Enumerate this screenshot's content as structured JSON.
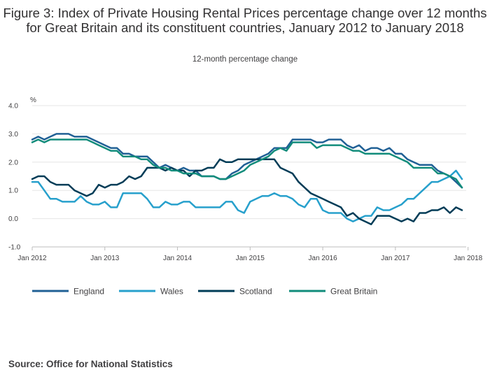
{
  "title": "Figure 3: Index of Private Housing Rental Prices percentage change over 12 months for Great Britain and its constituent countries, January 2012 to January 2018",
  "subtitle": "12-month percentage change",
  "source": "Source: Office for National Statistics",
  "chart_data": {
    "type": "line",
    "title": "Figure 3: Index of Private Housing Rental Prices percentage change over 12 months for Great Britain and its constituent countries, January 2012 to January 2018",
    "subtitle": "12-month percentage change",
    "ylabel": "%",
    "ylim": [
      -1.0,
      4.0
    ],
    "yticks": [
      "4.0",
      "3.0",
      "2.0",
      "1.0",
      "0.0",
      "-1.0"
    ],
    "yticks_values": [
      4.0,
      3.0,
      2.0,
      1.0,
      0.0,
      -1.0
    ],
    "xticks": [
      "Jan 2012",
      "Jan 2013",
      "Jan 2014",
      "Jan 2015",
      "Jan 2016",
      "Jan 2017",
      "Jan 2018"
    ],
    "x_start": "Jan 2012",
    "x_end": "Jan 2018",
    "frequency": "monthly",
    "grid": true,
    "legend_position": "bottom",
    "series": [
      {
        "name": "England",
        "color": "#206095",
        "values": [
          2.8,
          2.9,
          2.8,
          2.9,
          3.0,
          3.0,
          3.0,
          2.9,
          2.9,
          2.9,
          2.8,
          2.7,
          2.6,
          2.5,
          2.5,
          2.3,
          2.3,
          2.2,
          2.2,
          2.2,
          2.0,
          1.8,
          1.9,
          1.8,
          1.7,
          1.8,
          1.7,
          1.7,
          1.5,
          1.5,
          1.5,
          1.4,
          1.4,
          1.6,
          1.7,
          1.9,
          2.0,
          2.1,
          2.2,
          2.3,
          2.5,
          2.5,
          2.5,
          2.8,
          2.8,
          2.8,
          2.8,
          2.7,
          2.7,
          2.8,
          2.8,
          2.8,
          2.6,
          2.5,
          2.6,
          2.4,
          2.5,
          2.5,
          2.4,
          2.5,
          2.3,
          2.3,
          2.1,
          2.0,
          1.9,
          1.9,
          1.9,
          1.7,
          1.6,
          1.5,
          1.3,
          1.1
        ]
      },
      {
        "name": "Wales",
        "color": "#27a0cc",
        "values": [
          1.3,
          1.3,
          1.0,
          0.7,
          0.7,
          0.6,
          0.6,
          0.6,
          0.8,
          0.6,
          0.5,
          0.5,
          0.6,
          0.4,
          0.4,
          0.9,
          0.9,
          0.9,
          0.9,
          0.7,
          0.4,
          0.4,
          0.6,
          0.5,
          0.5,
          0.6,
          0.6,
          0.4,
          0.4,
          0.4,
          0.4,
          0.4,
          0.6,
          0.6,
          0.3,
          0.2,
          0.6,
          0.7,
          0.8,
          0.8,
          0.9,
          0.8,
          0.8,
          0.7,
          0.5,
          0.4,
          0.7,
          0.7,
          0.3,
          0.2,
          0.2,
          0.2,
          0.0,
          -0.1,
          0.0,
          0.1,
          0.1,
          0.4,
          0.3,
          0.3,
          0.4,
          0.5,
          0.7,
          0.7,
          0.9,
          1.1,
          1.3,
          1.3,
          1.4,
          1.5,
          1.7,
          1.4
        ]
      },
      {
        "name": "Scotland",
        "color": "#003c57",
        "values": [
          1.4,
          1.5,
          1.5,
          1.3,
          1.2,
          1.2,
          1.2,
          1.0,
          0.9,
          0.8,
          0.9,
          1.2,
          1.1,
          1.2,
          1.2,
          1.3,
          1.5,
          1.4,
          1.5,
          1.8,
          1.8,
          1.8,
          1.7,
          1.8,
          1.7,
          1.7,
          1.5,
          1.7,
          1.7,
          1.8,
          1.8,
          2.1,
          2.0,
          2.0,
          2.1,
          2.1,
          2.1,
          2.1,
          2.1,
          2.1,
          2.1,
          1.8,
          1.7,
          1.6,
          1.3,
          1.1,
          0.9,
          0.8,
          0.7,
          0.6,
          0.5,
          0.4,
          0.1,
          0.2,
          0.0,
          -0.1,
          -0.2,
          0.1,
          0.1,
          0.1,
          0.0,
          -0.1,
          0.0,
          -0.1,
          0.2,
          0.2,
          0.3,
          0.3,
          0.4,
          0.2,
          0.4,
          0.3
        ]
      },
      {
        "name": "Great Britain",
        "color": "#118c7b",
        "values": [
          2.7,
          2.8,
          2.7,
          2.8,
          2.8,
          2.8,
          2.8,
          2.8,
          2.8,
          2.8,
          2.7,
          2.6,
          2.5,
          2.4,
          2.4,
          2.2,
          2.2,
          2.2,
          2.1,
          2.1,
          1.9,
          1.8,
          1.8,
          1.7,
          1.7,
          1.6,
          1.6,
          1.6,
          1.5,
          1.5,
          1.5,
          1.4,
          1.4,
          1.5,
          1.6,
          1.7,
          1.9,
          2.0,
          2.1,
          2.2,
          2.4,
          2.5,
          2.4,
          2.7,
          2.7,
          2.7,
          2.7,
          2.5,
          2.6,
          2.6,
          2.6,
          2.6,
          2.5,
          2.4,
          2.4,
          2.3,
          2.3,
          2.3,
          2.3,
          2.3,
          2.2,
          2.1,
          2.0,
          1.8,
          1.8,
          1.8,
          1.8,
          1.6,
          1.6,
          1.5,
          1.4,
          1.1
        ]
      }
    ]
  }
}
